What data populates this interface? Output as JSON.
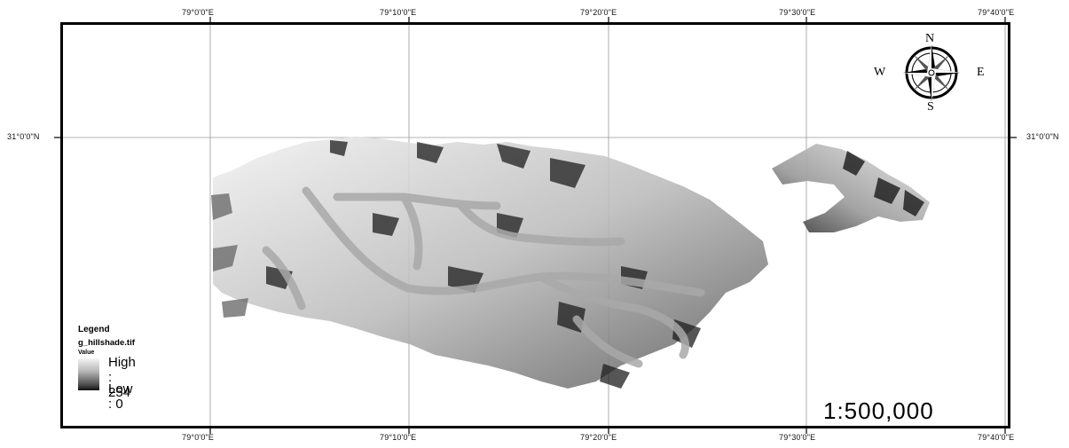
{
  "map": {
    "top_longitude_labels": [
      "79°0'0\"E",
      "79°10'0\"E",
      "79°20'0\"E",
      "79°30'0\"E",
      "79°40'0\"E"
    ],
    "bottom_longitude_labels": [
      "79°0'0\"E",
      "79°10'0\"E",
      "79°20'0\"E",
      "79°30'0\"E",
      "79°40'0\"E"
    ],
    "left_latitude_label": "31°0'0\"N",
    "right_latitude_label": "31°0'0\"N",
    "colors": {
      "frame": "#000000",
      "graticule": "#9a9a9a",
      "terrain_light": "#d6d6d6",
      "terrain_dark": "#2a2a2a"
    }
  },
  "compass": {
    "icon": "compass-rose-icon",
    "north": "N",
    "south": "S",
    "east": "E",
    "west": "W"
  },
  "legend": {
    "title": "Legend",
    "layer": "g_hillshade.tif",
    "field": "Value",
    "high_label": "High : 254",
    "low_label": "Low : 0"
  },
  "scale": {
    "text": "1:500,000"
  }
}
